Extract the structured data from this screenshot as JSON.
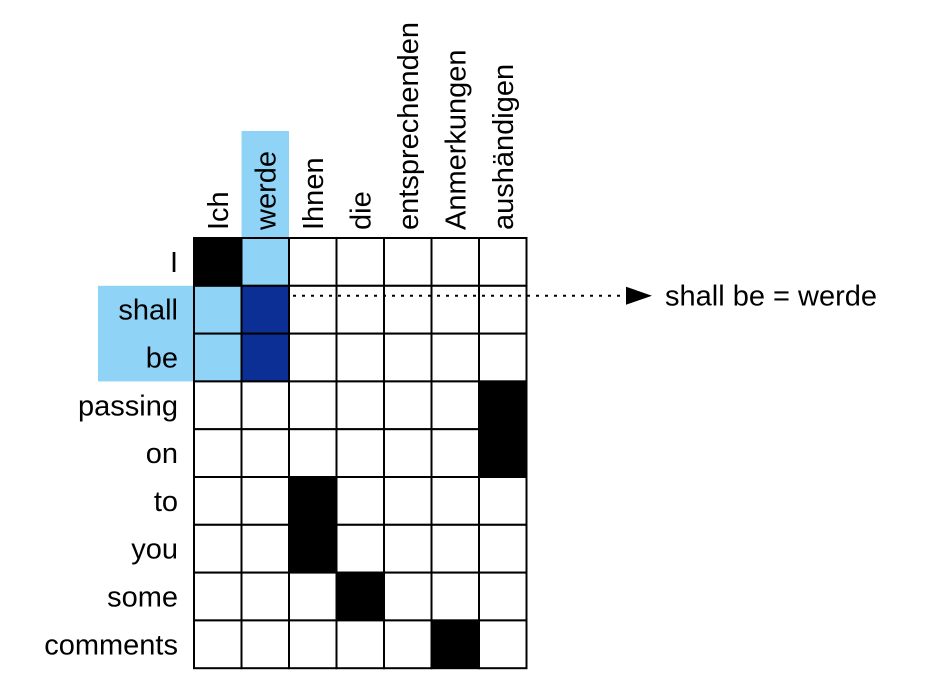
{
  "colors": {
    "black": "#000000",
    "light_blue": "#8fd3f7",
    "dark_blue": "#0b2f95",
    "white": "#ffffff",
    "grid": "#000000"
  },
  "matrix": {
    "columns": [
      "Ich",
      "werde",
      "Ihnen",
      "die",
      "entsprechenden",
      "Anmerkungen",
      "aushändigen"
    ],
    "rows": [
      "I",
      "shall",
      "be",
      "passing",
      "on",
      "to",
      "you",
      "some",
      "comments"
    ],
    "highlight_rows": [
      1,
      2
    ],
    "highlight_cols": [
      1
    ],
    "cells": [
      [
        "black",
        "light",
        "",
        "",
        "",
        "",
        ""
      ],
      [
        "light",
        "dark",
        "",
        "",
        "",
        "",
        ""
      ],
      [
        "light",
        "dark",
        "",
        "",
        "",
        "",
        ""
      ],
      [
        "",
        "",
        "",
        "",
        "",
        "",
        "black"
      ],
      [
        "",
        "",
        "",
        "",
        "",
        "",
        "black"
      ],
      [
        "",
        "",
        "black",
        "",
        "",
        "",
        ""
      ],
      [
        "",
        "",
        "black",
        "",
        "",
        "",
        ""
      ],
      [
        "",
        "",
        "",
        "black",
        "",
        "",
        ""
      ],
      [
        "",
        "",
        "",
        "",
        "",
        "black",
        ""
      ]
    ]
  },
  "annotation": {
    "label": "shall be = werde",
    "arrow_row": 1
  }
}
